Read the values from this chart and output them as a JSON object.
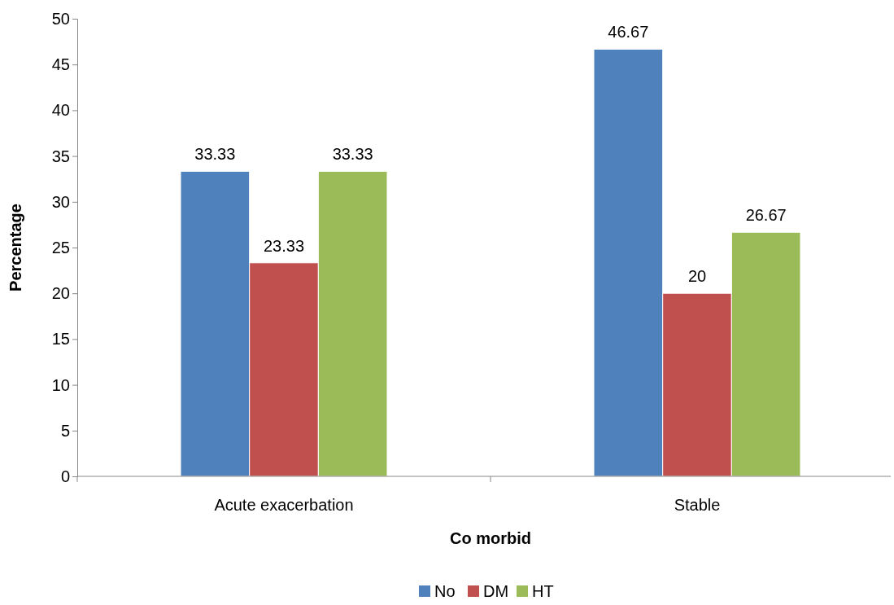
{
  "chart_data": {
    "type": "bar",
    "xlabel": "Co morbid",
    "ylabel": "Percentage",
    "categories": [
      "Acute exacerbation",
      "Stable"
    ],
    "series": [
      {
        "name": "No",
        "color": "#4f81bd",
        "values": [
          33.33,
          46.67
        ]
      },
      {
        "name": "DM",
        "color": "#c0504d",
        "values": [
          23.33,
          20
        ]
      },
      {
        "name": "HT",
        "color": "#9bbb59",
        "values": [
          33.33,
          26.67
        ]
      }
    ],
    "ylim": [
      0,
      50
    ],
    "yticks": [
      0,
      5,
      10,
      15,
      20,
      25,
      30,
      35,
      40,
      45,
      50
    ],
    "grid": false,
    "legend": "bottom",
    "data_labels": true
  }
}
